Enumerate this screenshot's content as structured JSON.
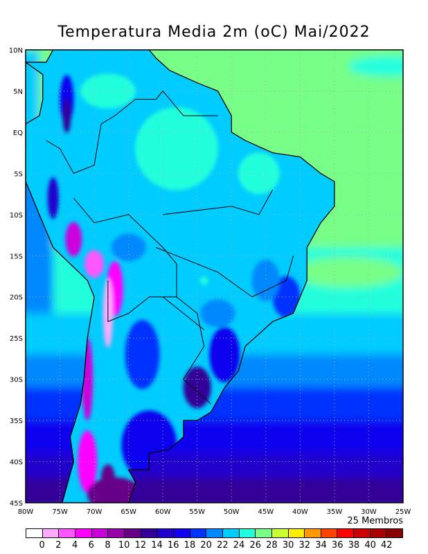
{
  "title": "Temperatura Media 2m (oC) Mai/2022",
  "members_label": "25 Membros",
  "lat_labels": [
    "10N",
    "5N",
    "EQ",
    "5S",
    "10S",
    "15S",
    "20S",
    "25S",
    "30S",
    "35S",
    "40S",
    "45S"
  ],
  "lon_labels": [
    "80W",
    "75W",
    "70W",
    "65W",
    "60W",
    "55W",
    "50W",
    "45W",
    "40W",
    "35W",
    "30W",
    "25W"
  ],
  "colorbar": {
    "labels": [
      "0",
      "2",
      "4",
      "6",
      "8",
      "10",
      "12",
      "14",
      "16",
      "18",
      "20",
      "22",
      "24",
      "26",
      "28",
      "30",
      "32",
      "34",
      "36",
      "38",
      "40",
      "42"
    ],
    "colors": [
      "#ffffff",
      "#ffaaff",
      "#ff55ff",
      "#ff00ff",
      "#cc00dd",
      "#9900aa",
      "#660088",
      "#330099",
      "#2200cc",
      "#1100ee",
      "#0033ff",
      "#0088ff",
      "#00ccff",
      "#22ffdd",
      "#77ff88",
      "#ccff33",
      "#ffee00",
      "#ff9900",
      "#ff4400",
      "#ff0000",
      "#cc0000",
      "#aa0000",
      "#880000"
    ]
  }
}
